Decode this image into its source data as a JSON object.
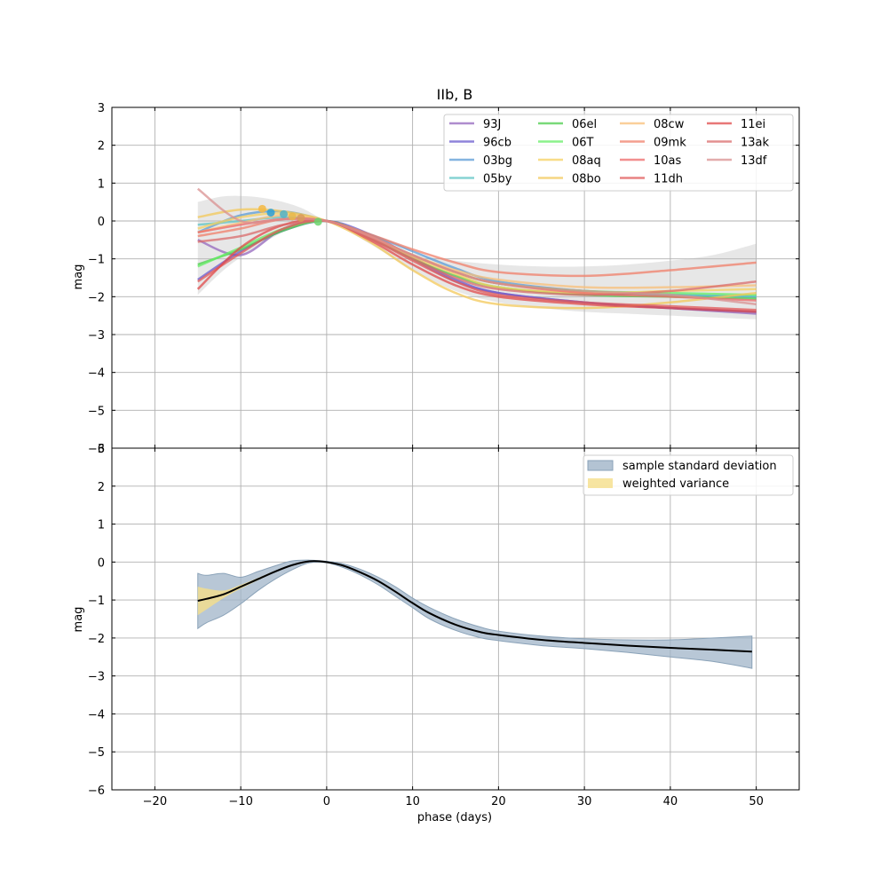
{
  "chart_data": [
    {
      "type": "line",
      "title": "IIb, B",
      "xlabel": "",
      "ylabel": "mag",
      "xlim": [
        -25,
        55
      ],
      "ylim": [
        -6,
        3
      ],
      "xticks": [
        -20,
        -10,
        0,
        10,
        20,
        30,
        40,
        50
      ],
      "yticks": [
        -6,
        -5,
        -4,
        -3,
        -2,
        -1,
        0,
        1,
        2,
        3
      ],
      "grid": true,
      "legend": "top-right",
      "legend_columns": 4,
      "band": {
        "name": "",
        "color": "#bbbbbb",
        "x": [
          -15,
          -12,
          -9,
          -6,
          -3,
          0,
          5,
          10,
          15,
          20,
          25,
          30,
          35,
          40,
          45,
          50
        ],
        "upper": [
          0.5,
          0.65,
          0.65,
          0.55,
          0.35,
          0.0,
          -0.45,
          -0.85,
          -1.05,
          -1.15,
          -1.2,
          -1.2,
          -1.15,
          -1.05,
          -0.9,
          -0.6
        ],
        "lower": [
          -1.95,
          -1.3,
          -0.8,
          -0.4,
          -0.05,
          0.0,
          -0.6,
          -1.3,
          -1.85,
          -2.15,
          -2.3,
          -2.4,
          -2.45,
          -2.5,
          -2.55,
          -2.6
        ]
      },
      "markers": [
        {
          "x": -7.5,
          "y": 0.32,
          "color": "#f5b942"
        },
        {
          "x": -6.5,
          "y": 0.22,
          "color": "#2a9fd6"
        },
        {
          "x": -5.0,
          "y": 0.18,
          "color": "#4fb3c9"
        },
        {
          "x": -4.0,
          "y": 0.12,
          "color": "#e8b84a"
        },
        {
          "x": -3.0,
          "y": 0.08,
          "color": "#d99a5a"
        },
        {
          "x": -1.0,
          "y": -0.02,
          "color": "#6cd36c"
        }
      ],
      "series": [
        {
          "name": "93J",
          "color": "#9467bd",
          "x": [
            -15,
            -10,
            -5,
            0,
            5,
            10,
            15,
            20,
            30,
            40,
            50
          ],
          "y": [
            -0.5,
            -0.9,
            -0.2,
            0.0,
            -0.4,
            -1.0,
            -1.6,
            -1.9,
            -2.15,
            -2.3,
            -2.45
          ]
        },
        {
          "name": "96cb",
          "color": "#6a5acd",
          "x": [
            -15,
            -10,
            -5,
            0,
            5,
            10,
            15,
            20,
            30,
            40,
            50
          ],
          "y": [
            -1.55,
            -0.8,
            -0.25,
            0.0,
            -0.35,
            -0.95,
            -1.55,
            -1.9,
            -2.15,
            -2.3,
            -2.4
          ]
        },
        {
          "name": "03bg",
          "color": "#5b9bd5",
          "x": [
            -15,
            -10,
            -5,
            0,
            5,
            10,
            15,
            20,
            30,
            40,
            50
          ],
          "y": [
            -0.3,
            0.15,
            0.25,
            0.0,
            -0.35,
            -0.8,
            -1.25,
            -1.6,
            -1.85,
            -1.95,
            -2.0
          ]
        },
        {
          "name": "05by",
          "color": "#5fc4c4",
          "x": [
            -15,
            -10,
            -5,
            0,
            5,
            10,
            15,
            20,
            30,
            40,
            50
          ],
          "y": [
            -0.1,
            0.0,
            0.1,
            0.0,
            -0.4,
            -0.9,
            -1.35,
            -1.65,
            -1.85,
            -1.95,
            -2.0
          ]
        },
        {
          "name": "06el",
          "color": "#4ccc4c",
          "x": [
            -15,
            -10,
            -5,
            0,
            5,
            10,
            15,
            20,
            30,
            40,
            50
          ],
          "y": [
            -1.15,
            -0.75,
            -0.25,
            0.0,
            -0.45,
            -1.0,
            -1.45,
            -1.75,
            -1.95,
            -2.0,
            -2.05
          ]
        },
        {
          "name": "06T",
          "color": "#66ee66",
          "x": [
            -15,
            -10,
            -5,
            0,
            5,
            10,
            15,
            20,
            30,
            40,
            50
          ],
          "y": [
            -1.2,
            -0.7,
            -0.2,
            0.0,
            -0.4,
            -0.9,
            -1.35,
            -1.65,
            -1.85,
            -1.9,
            -1.95
          ]
        },
        {
          "name": "08aq",
          "color": "#f5d060",
          "x": [
            -15,
            -10,
            -5,
            0,
            5,
            10,
            15,
            20,
            30,
            40,
            50
          ],
          "y": [
            -0.2,
            0.1,
            0.2,
            0.0,
            -0.4,
            -0.95,
            -1.4,
            -1.75,
            -1.9,
            -1.85,
            -1.8
          ]
        },
        {
          "name": "08bo",
          "color": "#f3c858",
          "x": [
            -15,
            -10,
            -5,
            0,
            5,
            10,
            15,
            20,
            30,
            40,
            50
          ],
          "y": [
            0.1,
            0.3,
            0.25,
            0.0,
            -0.55,
            -1.3,
            -1.9,
            -2.2,
            -2.3,
            -2.15,
            -1.9
          ]
        },
        {
          "name": "08cw",
          "color": "#f8bf78",
          "x": [
            -15,
            -10,
            -5,
            0,
            5,
            10,
            15,
            20,
            30,
            40,
            50
          ],
          "y": [
            -0.3,
            -0.05,
            0.15,
            0.0,
            -0.4,
            -0.9,
            -1.3,
            -1.55,
            -1.75,
            -1.75,
            -1.7
          ]
        },
        {
          "name": "09mk",
          "color": "#f07f6a",
          "x": [
            -15,
            -10,
            -5,
            0,
            5,
            10,
            15,
            20,
            30,
            40,
            50
          ],
          "y": [
            -0.4,
            -0.2,
            0.05,
            0.0,
            -0.35,
            -0.75,
            -1.1,
            -1.35,
            -1.45,
            -1.3,
            -1.1
          ]
        },
        {
          "name": "10as",
          "color": "#ee6a6a",
          "x": [
            -15,
            -10,
            -5,
            0,
            5,
            10,
            15,
            20,
            30,
            40,
            50
          ],
          "y": [
            -0.3,
            -0.1,
            0.05,
            0.0,
            -0.4,
            -0.9,
            -1.35,
            -1.65,
            -1.9,
            -2.0,
            -2.1
          ]
        },
        {
          "name": "11dh",
          "color": "#e05858",
          "x": [
            -15,
            -10,
            -5,
            0,
            5,
            10,
            15,
            20,
            30,
            40,
            50
          ],
          "y": [
            -1.6,
            -0.85,
            -0.2,
            0.0,
            -0.45,
            -1.05,
            -1.6,
            -1.95,
            -2.15,
            -2.25,
            -2.35
          ]
        },
        {
          "name": "11ei",
          "color": "#e04a4a",
          "x": [
            -15,
            -10,
            -5,
            0,
            5,
            10,
            15,
            20,
            30,
            40,
            50
          ],
          "y": [
            -1.8,
            -0.7,
            -0.1,
            0.0,
            -0.5,
            -1.15,
            -1.7,
            -2.0,
            -2.2,
            -2.3,
            -2.4
          ]
        },
        {
          "name": "13ak",
          "color": "#d96b6b",
          "x": [
            -15,
            -10,
            -5,
            0,
            5,
            10,
            15,
            20,
            30,
            40,
            50
          ],
          "y": [
            -0.55,
            -0.4,
            -0.1,
            0.0,
            -0.45,
            -1.0,
            -1.5,
            -1.8,
            -1.95,
            -1.85,
            -1.6
          ]
        },
        {
          "name": "13df",
          "color": "#d99090",
          "x": [
            -15,
            -10,
            -5,
            0,
            5,
            10,
            15,
            20,
            30,
            40,
            50
          ],
          "y": [
            0.85,
            0.0,
            0.05,
            0.0,
            -0.4,
            -0.9,
            -1.35,
            -1.65,
            -1.85,
            -1.95,
            -2.2
          ]
        }
      ]
    },
    {
      "type": "area",
      "title": "",
      "xlabel": "phase (days)",
      "ylabel": "mag",
      "xlim": [
        -25,
        55
      ],
      "ylim": [
        -6,
        3
      ],
      "xticks": [
        -20,
        -10,
        0,
        10,
        20,
        30,
        40,
        50
      ],
      "yticks": [
        -6,
        -5,
        -4,
        -3,
        -2,
        -1,
        0,
        1,
        2
      ],
      "grid": true,
      "legend": "top-right",
      "x": [
        -15,
        -14,
        -12,
        -10,
        -8,
        -6,
        -4,
        -2,
        0,
        2,
        4,
        6,
        8,
        10,
        12,
        15,
        18,
        20,
        25,
        30,
        35,
        40,
        45,
        49.5
      ],
      "mean": [
        -1.02,
        -0.97,
        -0.85,
        -0.65,
        -0.45,
        -0.25,
        -0.08,
        0.02,
        0.0,
        -0.1,
        -0.28,
        -0.5,
        -0.78,
        -1.08,
        -1.35,
        -1.65,
        -1.85,
        -1.92,
        -2.05,
        -2.13,
        -2.2,
        -2.26,
        -2.31,
        -2.36
      ],
      "series": [
        {
          "name": "sample standard deviation",
          "color": "#a0b4c8",
          "upper": [
            -0.3,
            -0.35,
            -0.3,
            -0.4,
            -0.25,
            -0.1,
            0.03,
            0.05,
            0.02,
            -0.05,
            -0.2,
            -0.4,
            -0.65,
            -0.95,
            -1.2,
            -1.5,
            -1.72,
            -1.82,
            -1.95,
            -2.02,
            -2.05,
            -2.05,
            -2.0,
            -1.95
          ],
          "lower": [
            -1.75,
            -1.6,
            -1.4,
            -1.1,
            -0.75,
            -0.45,
            -0.2,
            -0.02,
            -0.02,
            -0.15,
            -0.35,
            -0.6,
            -0.9,
            -1.2,
            -1.5,
            -1.8,
            -2.0,
            -2.07,
            -2.2,
            -2.28,
            -2.38,
            -2.5,
            -2.62,
            -2.8
          ]
        },
        {
          "name": "weighted variance",
          "color": "#f5df8a",
          "upper": [
            -0.65,
            -0.7,
            -0.75,
            -0.6,
            -0.42,
            -0.23,
            -0.07,
            0.03,
            0.01,
            -0.09,
            -0.27,
            -0.49,
            -0.77,
            -1.07,
            -1.34,
            -1.64,
            -1.84,
            -1.91,
            -2.04,
            -2.12,
            -2.19,
            -2.25,
            -2.3,
            -2.35
          ],
          "lower": [
            -1.4,
            -1.25,
            -0.95,
            -0.7,
            -0.48,
            -0.27,
            -0.09,
            0.01,
            -0.01,
            -0.11,
            -0.29,
            -0.51,
            -0.79,
            -1.09,
            -1.36,
            -1.66,
            -1.86,
            -1.93,
            -2.06,
            -2.14,
            -2.21,
            -2.27,
            -2.32,
            -2.37
          ]
        }
      ]
    }
  ]
}
